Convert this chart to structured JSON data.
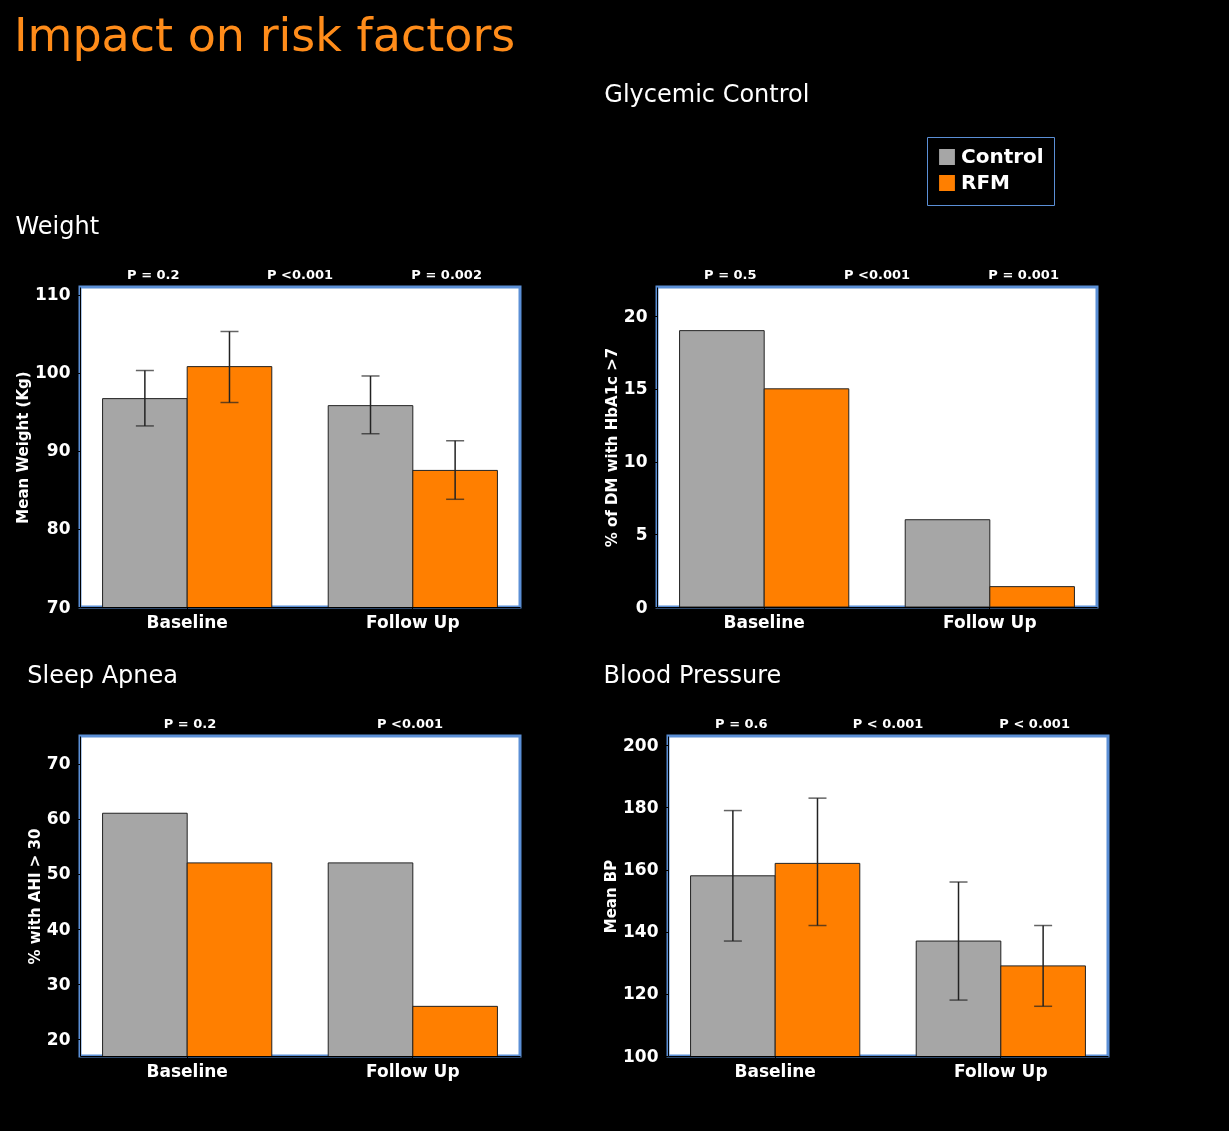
{
  "chart_data": [
    {
      "type": "bar",
      "title": "Impact on risk factors",
      "subtitle": "Weight",
      "ylabel": "Mean Weight (Kg)",
      "categories": [
        "Baseline",
        "Follow Up"
      ],
      "ylim": [
        70,
        111
      ],
      "yticks": [
        70,
        80,
        90,
        100,
        110
      ],
      "grid": false,
      "series": [
        {
          "color": "#a6a6a6",
          "values": [
            96.7,
            95.8
          ],
          "errors": [
            [
              93.2,
              100.3
            ],
            [
              92.2,
              99.6
            ]
          ]
        },
        {
          "color": "#ff7f00",
          "values": [
            100.8,
            87.5
          ],
          "errors": [
            [
              96.2,
              105.3
            ],
            [
              83.8,
              91.3
            ]
          ]
        }
      ],
      "annotations": [
        "P = 0.2",
        "P <0.001",
        "P = 0.002"
      ]
    },
    {
      "type": "bar",
      "title": "Glycemic Control",
      "ylabel": "% of DM with HbA1c >7",
      "categories": [
        "Baseline",
        "Follow Up"
      ],
      "ylim": [
        0,
        22
      ],
      "yticks": [
        0,
        5,
        10,
        15,
        20
      ],
      "grid": false,
      "legend": "top right",
      "series": [
        {
          "name": "Control",
          "color": "#a6a6a6",
          "values": [
            19,
            6
          ]
        },
        {
          "name": "RFM",
          "color": "#ff7f00",
          "values": [
            15,
            1.4
          ]
        }
      ],
      "annotations": [
        "P = 0.5",
        "P <0.001",
        "P = 0.001"
      ]
    },
    {
      "type": "bar",
      "title": "Sleep Apnea",
      "ylabel": "% with AHI > 30",
      "categories": [
        "Baseline",
        "Follow Up"
      ],
      "ylim": [
        17,
        75
      ],
      "yticks": [
        20,
        30,
        40,
        50,
        60,
        70
      ],
      "grid": false,
      "series": [
        {
          "color": "#a6a6a6",
          "values": [
            61,
            52
          ]
        },
        {
          "color": "#ff7f00",
          "values": [
            52,
            26
          ]
        }
      ],
      "annotations": [
        "P = 0.2",
        "P <0.001"
      ]
    },
    {
      "type": "bar",
      "title": "Blood Pressure",
      "ylabel": "Mean BP",
      "categories": [
        "Baseline",
        "Follow Up"
      ],
      "ylim": [
        100,
        203
      ],
      "yticks": [
        100,
        120,
        140,
        160,
        180,
        200
      ],
      "grid": false,
      "series": [
        {
          "color": "#a6a6a6",
          "values": [
            158,
            137
          ],
          "errors": [
            [
              137,
              179
            ],
            [
              118,
              156
            ]
          ]
        },
        {
          "color": "#ff7f00",
          "values": [
            162,
            129
          ],
          "errors": [
            [
              142,
              183
            ],
            [
              116,
              142
            ]
          ]
        }
      ],
      "annotations": [
        "P = 0.6",
        "P  < 0.001",
        "P < 0.001"
      ]
    }
  ]
}
